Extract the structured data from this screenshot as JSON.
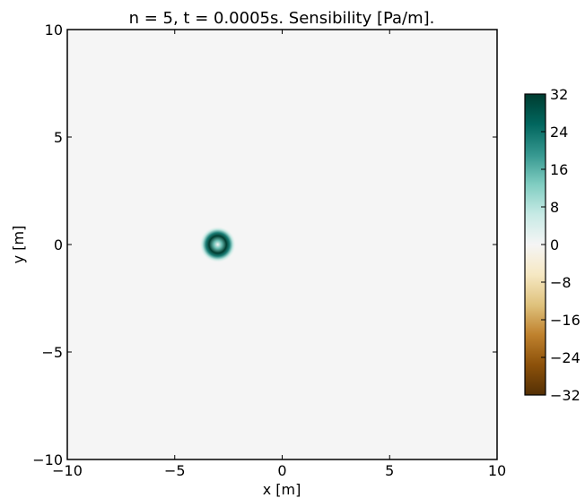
{
  "chart_data": {
    "type": "heatmap",
    "title": "n = 5, t = 0.0005s. Sensibility [Pa/m].",
    "xlabel": "x [m]",
    "ylabel": "y [m]",
    "xlim": [
      -10,
      10
    ],
    "ylim": [
      -10,
      10
    ],
    "xticks": [
      -10,
      -5,
      0,
      5,
      10
    ],
    "yticks": [
      -10,
      -5,
      0,
      5,
      10
    ],
    "xtick_labels": [
      "−10",
      "−5",
      "0",
      "5",
      "10"
    ],
    "ytick_labels": [
      "−10",
      "−5",
      "0",
      "5",
      "10"
    ],
    "background_value": 0,
    "feature": {
      "shape": "ring",
      "center": [
        -3.0,
        0.0
      ],
      "inner_radius": 0.18,
      "peak_radius": 0.4,
      "outer_radius": 0.85,
      "peak_value": 32,
      "center_value": 0
    },
    "colorbar": {
      "colormap": "BrBG",
      "min": -32,
      "max": 32,
      "ticks": [
        32,
        24,
        16,
        8,
        0,
        -8,
        -16,
        -24,
        -32
      ],
      "tick_labels": [
        "32",
        "24",
        "16",
        "8",
        "0",
        "−8",
        "−16",
        "−24",
        "−32"
      ],
      "colors": [
        "#543005",
        "#8c510a",
        "#bf812d",
        "#dfc27d",
        "#f6e8c3",
        "#f5f5f5",
        "#c7eae5",
        "#80cdc1",
        "#35978f",
        "#01665e",
        "#003c30"
      ]
    },
    "grid": false
  }
}
